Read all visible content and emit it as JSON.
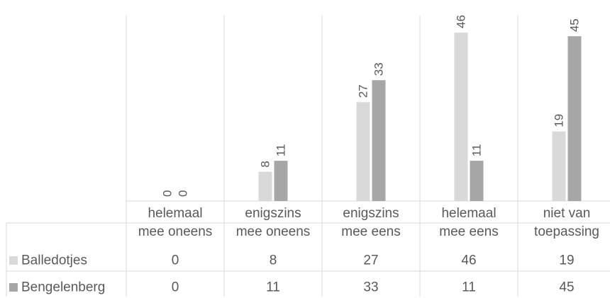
{
  "chart_data": {
    "type": "bar",
    "title": "",
    "xlabel": "",
    "ylabel": "",
    "ylim": [
      0,
      46
    ],
    "grid": false,
    "legend": "data-table",
    "categories": [
      [
        "helemaal",
        "mee oneens"
      ],
      [
        "enigszins",
        "mee oneens"
      ],
      [
        "enigszins",
        "mee eens"
      ],
      [
        "helemaal",
        "mee eens"
      ],
      [
        "niet van",
        "toepassing"
      ]
    ],
    "series": [
      {
        "name": "Balledotjes",
        "color": "#d9d9d9",
        "values": [
          0,
          8,
          27,
          46,
          19
        ]
      },
      {
        "name": "Bengelenberg",
        "color": "#a6a6a6",
        "values": [
          0,
          11,
          33,
          11,
          45
        ]
      }
    ]
  }
}
